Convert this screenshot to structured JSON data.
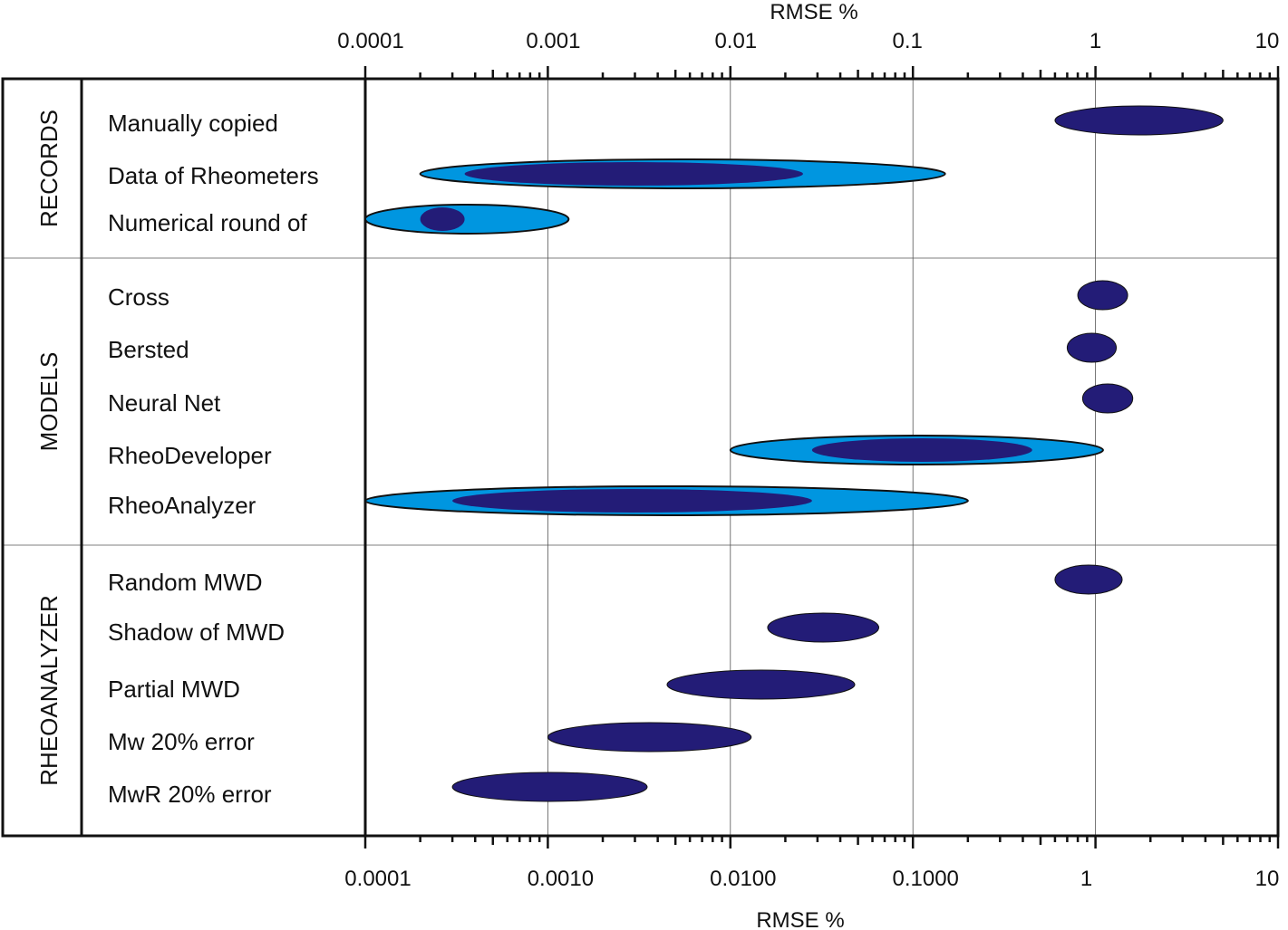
{
  "chart_data": {
    "type": "range",
    "x_scale": "log",
    "xlim": [
      0.0001,
      10
    ],
    "top_axis": {
      "title": "RMSE %",
      "ticks": [
        {
          "value": 0.0001,
          "label": "0.0001"
        },
        {
          "value": 0.001,
          "label": "0.001"
        },
        {
          "value": 0.01,
          "label": "0.01"
        },
        {
          "value": 0.1,
          "label": "0.1"
        },
        {
          "value": 1,
          "label": "1"
        },
        {
          "value": 10,
          "label": "10"
        }
      ]
    },
    "bottom_axis": {
      "title": "RMSE %",
      "ticks": [
        {
          "value": 0.0001,
          "label": "0.0001"
        },
        {
          "value": 0.001,
          "label": "0.0010"
        },
        {
          "value": 0.01,
          "label": "0.0100"
        },
        {
          "value": 0.1,
          "label": "0.1000"
        },
        {
          "value": 1,
          "label": "1"
        },
        {
          "value": 10,
          "label": "10"
        }
      ]
    },
    "grid": true,
    "colors": {
      "inner": "#231c77",
      "outer": "#0096e0",
      "outline": "#111111",
      "grid": "#555555"
    },
    "groups": [
      {
        "label": "RECORDS",
        "rows": [
          {
            "label": "Manually copied",
            "inner": [
              0.6,
              5.0
            ]
          },
          {
            "label": "Data of Rheometers",
            "outer": [
              0.0002,
              0.15
            ],
            "inner": [
              0.00035,
              0.025
            ]
          },
          {
            "label": "Numerical round of",
            "outer": [
              0.0001,
              0.0013
            ],
            "inner": [
              0.0002,
              0.00035
            ]
          }
        ]
      },
      {
        "label": "MODELS",
        "rows": [
          {
            "label": "Cross",
            "inner": [
              0.8,
              1.5
            ]
          },
          {
            "label": "Bersted",
            "inner": [
              0.7,
              1.3
            ]
          },
          {
            "label": "Neural Net",
            "inner": [
              0.85,
              1.6
            ]
          },
          {
            "label": "RheoDeveloper",
            "outer": [
              0.01,
              1.1
            ],
            "inner": [
              0.028,
              0.45
            ]
          },
          {
            "label": "RheoAnalyzer",
            "outer": [
              0.0001,
              0.2
            ],
            "inner": [
              0.0003,
              0.028
            ]
          }
        ]
      },
      {
        "label": "RHEOANALYZER",
        "rows": [
          {
            "label": "Random MWD",
            "inner": [
              0.6,
              1.4
            ]
          },
          {
            "label": "Shadow of MWD",
            "inner": [
              0.016,
              0.065
            ]
          },
          {
            "label": "Partial MWD",
            "inner": [
              0.0045,
              0.048
            ]
          },
          {
            "label": "Mw 20% error",
            "inner": [
              0.001,
              0.013
            ]
          },
          {
            "label": "MwR 20% error",
            "inner": [
              0.0003,
              0.0035
            ]
          }
        ]
      }
    ]
  }
}
